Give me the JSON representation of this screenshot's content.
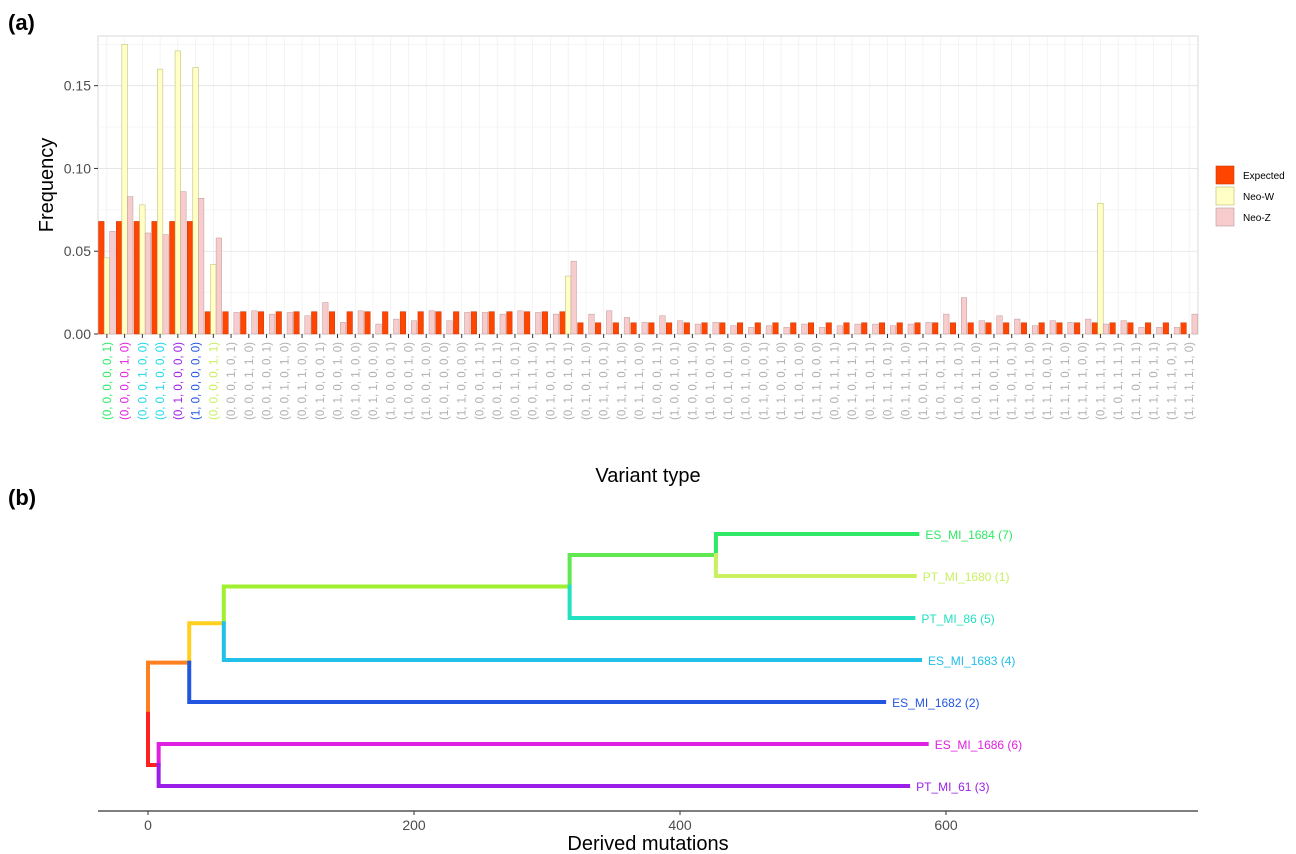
{
  "panels": {
    "a_label": "(a)",
    "b_label": "(b)"
  },
  "colors": {
    "expected": "#ff4500",
    "neo_w": "#ffffc6",
    "neo_z": "#f8cccc",
    "grey_label": "#b0b0b0"
  },
  "chart_data": [
    {
      "type": "bar",
      "xlabel": "Variant type",
      "ylabel": "Frequency",
      "ylim": [
        0,
        0.18
      ],
      "yticks": [
        0.0,
        0.05,
        0.1,
        0.15
      ],
      "ytick_labels": [
        "0.00",
        "0.05",
        "0.10",
        "0.15"
      ],
      "grid": true,
      "legend": "right",
      "categories": [
        "(0, 0, 0, 0, 0, 1)",
        "(0, 0, 0, 0, 1, 0)",
        "(0, 0, 0, 1, 0, 0)",
        "(0, 0, 1, 0, 0, 0)",
        "(0, 1, 0, 0, 0, 0)",
        "(1, 0, 0, 0, 0, 0)",
        "(0, 0, 0, 0, 1, 1)",
        "(0, 0, 0, 1, 0, 1)",
        "(0, 0, 0, 1, 1, 0)",
        "(0, 0, 1, 0, 0, 1)",
        "(0, 0, 1, 0, 1, 0)",
        "(0, 0, 1, 1, 0, 0)",
        "(0, 1, 0, 0, 0, 1)",
        "(0, 1, 0, 0, 1, 0)",
        "(0, 1, 0, 1, 0, 0)",
        "(0, 1, 1, 0, 0, 0)",
        "(1, 0, 0, 0, 0, 1)",
        "(1, 0, 0, 0, 1, 0)",
        "(1, 0, 0, 1, 0, 0)",
        "(1, 0, 1, 0, 0, 0)",
        "(1, 1, 0, 0, 0, 0)",
        "(0, 0, 0, 1, 1, 1)",
        "(0, 0, 1, 0, 1, 1)",
        "(0, 0, 1, 1, 0, 1)",
        "(0, 0, 1, 1, 1, 0)",
        "(0, 1, 0, 0, 1, 1)",
        "(0, 1, 0, 1, 0, 1)",
        "(0, 1, 0, 1, 1, 0)",
        "(0, 1, 1, 0, 0, 1)",
        "(0, 1, 1, 0, 1, 0)",
        "(0, 1, 1, 1, 0, 0)",
        "(1, 0, 0, 0, 1, 1)",
        "(1, 0, 0, 1, 0, 1)",
        "(1, 0, 0, 1, 1, 0)",
        "(1, 0, 1, 0, 0, 1)",
        "(1, 0, 1, 0, 1, 0)",
        "(1, 0, 1, 1, 0, 0)",
        "(1, 1, 0, 0, 0, 1)",
        "(1, 1, 0, 0, 1, 0)",
        "(1, 1, 0, 1, 0, 0)",
        "(1, 1, 1, 0, 0, 0)",
        "(0, 0, 1, 1, 1, 1)",
        "(0, 1, 0, 1, 1, 1)",
        "(0, 1, 1, 0, 1, 1)",
        "(0, 1, 1, 1, 0, 1)",
        "(0, 1, 1, 1, 1, 0)",
        "(1, 0, 0, 1, 1, 1)",
        "(1, 0, 1, 0, 1, 1)",
        "(1, 0, 1, 1, 0, 1)",
        "(1, 0, 1, 1, 1, 0)",
        "(1, 1, 0, 0, 1, 1)",
        "(1, 1, 0, 1, 0, 1)",
        "(1, 1, 0, 1, 1, 0)",
        "(1, 1, 1, 0, 0, 1)",
        "(1, 1, 1, 0, 1, 0)",
        "(1, 1, 1, 1, 0, 0)",
        "(0, 1, 1, 1, 1, 1)",
        "(1, 0, 1, 1, 1, 1)",
        "(1, 1, 0, 1, 1, 1)",
        "(1, 1, 1, 0, 1, 1)",
        "(1, 1, 1, 1, 0, 1)",
        "(1, 1, 1, 1, 1, 0)"
      ],
      "category_colors": [
        "#2ee866",
        "#e020e0",
        "#20d8e8",
        "#20d8e8",
        "#9b1fe8",
        "#2356e0",
        "#c8f060",
        "#b0b0b0",
        "#b0b0b0",
        "#b0b0b0",
        "#b0b0b0",
        "#b0b0b0",
        "#b0b0b0",
        "#b0b0b0",
        "#b0b0b0",
        "#b0b0b0",
        "#b0b0b0",
        "#b0b0b0",
        "#b0b0b0",
        "#b0b0b0",
        "#b0b0b0",
        "#b0b0b0",
        "#b0b0b0",
        "#b0b0b0",
        "#b0b0b0",
        "#b0b0b0",
        "#b0b0b0",
        "#b0b0b0",
        "#b0b0b0",
        "#b0b0b0",
        "#b0b0b0",
        "#b0b0b0",
        "#b0b0b0",
        "#b0b0b0",
        "#b0b0b0",
        "#b0b0b0",
        "#b0b0b0",
        "#b0b0b0",
        "#b0b0b0",
        "#b0b0b0",
        "#b0b0b0",
        "#b0b0b0",
        "#b0b0b0",
        "#b0b0b0",
        "#b0b0b0",
        "#b0b0b0",
        "#b0b0b0",
        "#b0b0b0",
        "#b0b0b0",
        "#b0b0b0",
        "#b0b0b0",
        "#b0b0b0",
        "#b0b0b0",
        "#b0b0b0",
        "#b0b0b0",
        "#b0b0b0",
        "#b0b0b0",
        "#b0b0b0",
        "#b0b0b0",
        "#b0b0b0",
        "#b0b0b0",
        "#b0b0b0"
      ],
      "series": [
        {
          "name": "Expected",
          "values": [
            0.068,
            0.068,
            0.068,
            0.068,
            0.068,
            0.068,
            0.0135,
            0.0135,
            0.0135,
            0.0135,
            0.0135,
            0.0135,
            0.0135,
            0.0135,
            0.0135,
            0.0135,
            0.0135,
            0.0135,
            0.0135,
            0.0135,
            0.0135,
            0.0135,
            0.0135,
            0.0135,
            0.0135,
            0.0135,
            0.0135,
            0.0068,
            0.0068,
            0.0068,
            0.0068,
            0.0068,
            0.0068,
            0.0068,
            0.0068,
            0.0068,
            0.0068,
            0.0068,
            0.0068,
            0.0068,
            0.0068,
            0.0068,
            0.0068,
            0.0068,
            0.0068,
            0.0068,
            0.0068,
            0.0068,
            0.0068,
            0.0068,
            0.0068,
            0.0068,
            0.0068,
            0.0068,
            0.0068,
            0.0068,
            0.0068,
            0.0068,
            0.0068,
            0.0068,
            0.0068,
            0.0068
          ]
        },
        {
          "name": "Neo-W",
          "values": [
            0.046,
            0.175,
            0.078,
            0.16,
            0.171,
            0.161,
            0.042,
            0,
            0,
            0,
            0,
            0,
            0,
            0,
            0,
            0,
            0,
            0,
            0,
            0,
            0,
            0,
            0,
            0,
            0,
            0,
            0.035,
            0,
            0,
            0,
            0,
            0,
            0,
            0,
            0,
            0,
            0,
            0,
            0,
            0,
            0,
            0,
            0,
            0,
            0,
            0,
            0,
            0,
            0,
            0,
            0,
            0,
            0,
            0,
            0,
            0,
            0.079,
            0,
            0,
            0,
            0,
            0
          ]
        },
        {
          "name": "Neo-Z",
          "values": [
            0.062,
            0.083,
            0.061,
            0.06,
            0.086,
            0.082,
            0.058,
            0.013,
            0.014,
            0.012,
            0.013,
            0.011,
            0.019,
            0.007,
            0.014,
            0.006,
            0.009,
            0.008,
            0.014,
            0.008,
            0.013,
            0.013,
            0.012,
            0.014,
            0.013,
            0.012,
            0.044,
            0.012,
            0.014,
            0.01,
            0.007,
            0.011,
            0.008,
            0.006,
            0.007,
            0.005,
            0.004,
            0.005,
            0.004,
            0.006,
            0.004,
            0.005,
            0.006,
            0.006,
            0.005,
            0.006,
            0.007,
            0.012,
            0.022,
            0.008,
            0.011,
            0.009,
            0.005,
            0.008,
            0.007,
            0.009,
            0.006,
            0.008,
            0.004,
            0.004,
            0.004,
            0.012
          ]
        }
      ]
    },
    {
      "type": "dendrogram",
      "xlabel": "Derived mutations",
      "xlim": [
        -35,
        790
      ],
      "xticks": [
        0,
        200,
        400,
        600
      ],
      "xtick_labels": [
        "0",
        "200",
        "400",
        "600"
      ],
      "leaves": [
        {
          "label": "ES_MI_1684 (7)",
          "end": 580,
          "color": "#2ee866"
        },
        {
          "label": "PT_MI_1680 (1)",
          "end": 578,
          "color": "#c8f060"
        },
        {
          "label": "PT_MI_86 (5)",
          "end": 577,
          "color": "#22e0c0"
        },
        {
          "label": "ES_MI_1683 (4)",
          "end": 582,
          "color": "#20c0e8"
        },
        {
          "label": "ES_MI_1682 (2)",
          "end": 555,
          "color": "#2356e0"
        },
        {
          "label": "ES_MI_1686 (6)",
          "end": 587,
          "color": "#e020e0"
        },
        {
          "label": "PT_MI_61 (3)",
          "end": 573,
          "color": "#9b1fe8"
        }
      ],
      "nodes": [
        {
          "x": 0,
          "color": "#ff2020",
          "children": [
            "n2",
            "n_ins"
          ],
          "parent": null,
          "id": "n1"
        },
        {
          "x": 8,
          "color": "#ff2020",
          "children": [
            "ES_MI_1686 (6)",
            "PT_MI_61 (3)"
          ],
          "parent": "n1",
          "id": "n_ins"
        },
        {
          "x": 31,
          "color": "#ff8020",
          "children": [
            "n3",
            "ES_MI_1682 (2)"
          ],
          "parent": "n1",
          "id": "n2"
        },
        {
          "x": 57,
          "color": "#ffd020",
          "children": [
            "n4",
            "ES_MI_1683 (4)"
          ],
          "parent": "n2",
          "id": "n3"
        },
        {
          "x": 317,
          "color": "#a0f030",
          "children": [
            "n5",
            "PT_MI_86 (5)"
          ],
          "parent": "n3",
          "id": "n4"
        },
        {
          "x": 427,
          "color": "#60e850",
          "children": [
            "ES_MI_1684 (7)",
            "PT_MI_1680 (1)"
          ],
          "parent": "n4",
          "id": "n5"
        }
      ]
    }
  ]
}
